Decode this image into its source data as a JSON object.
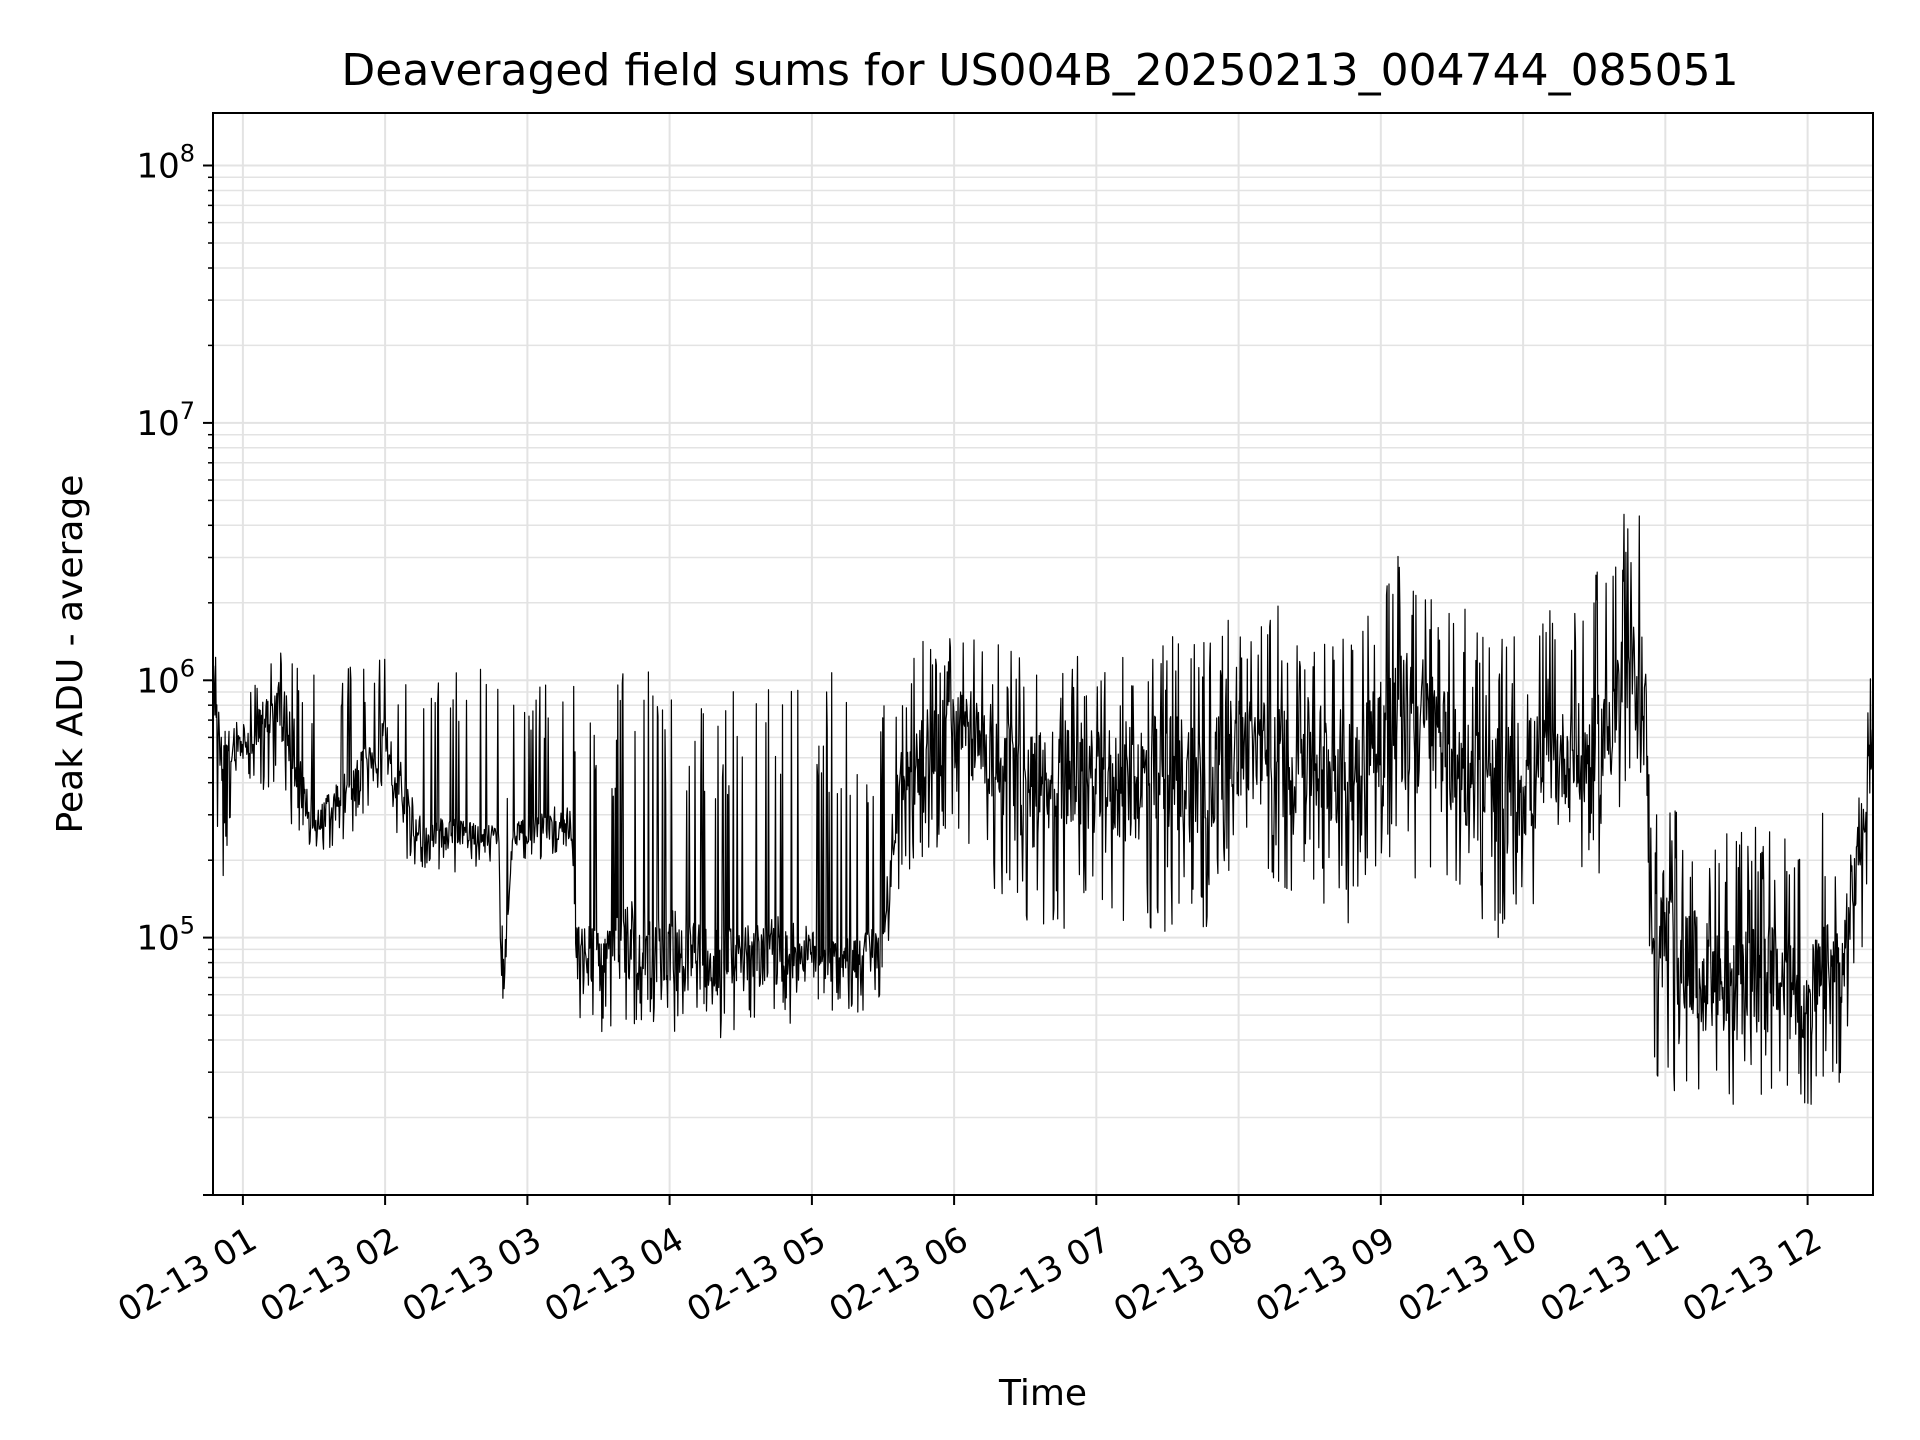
{
  "chart_data": {
    "type": "line",
    "title": "Deaveraged field sums for US004B_20250213_004744_085051",
    "xlabel": "Time",
    "ylabel": "Peak ADU - average",
    "yscale": "log",
    "ylim": [
      10000,
      160000000
    ],
    "xlim_hours": [
      0.79,
      12.46
    ],
    "grid": true,
    "line_color": "#000000",
    "x_ticks": [
      {
        "hour": 1,
        "label": "02-13 01"
      },
      {
        "hour": 2,
        "label": "02-13 02"
      },
      {
        "hour": 3,
        "label": "02-13 03"
      },
      {
        "hour": 4,
        "label": "02-13 04"
      },
      {
        "hour": 5,
        "label": "02-13 05"
      },
      {
        "hour": 6,
        "label": "02-13 06"
      },
      {
        "hour": 7,
        "label": "02-13 07"
      },
      {
        "hour": 8,
        "label": "02-13 08"
      },
      {
        "hour": 9,
        "label": "02-13 09"
      },
      {
        "hour": 10,
        "label": "02-13 10"
      },
      {
        "hour": 11,
        "label": "02-13 11"
      },
      {
        "hour": 12,
        "label": "02-13 12"
      }
    ],
    "y_ticks": [
      {
        "value": 100000,
        "base": "10",
        "exp": "5"
      },
      {
        "value": 1000000,
        "base": "10",
        "exp": "6"
      },
      {
        "value": 10000000,
        "base": "10",
        "exp": "7"
      },
      {
        "value": 100000000,
        "base": "10",
        "exp": "8"
      }
    ],
    "series": [
      {
        "x_hours": [
          0.79,
          0.85,
          0.95,
          1.1,
          1.25,
          1.4,
          1.5,
          1.75,
          2.0,
          2.1,
          2.25,
          2.5,
          2.8,
          2.82,
          2.9,
          3.2,
          3.3,
          3.35,
          3.5,
          3.75,
          4.0,
          4.25,
          4.5,
          4.8,
          5.0,
          5.25,
          5.5,
          5.6,
          5.75,
          6.0,
          6.25,
          6.5,
          6.75,
          7.0,
          7.25,
          7.5,
          7.75,
          8.0,
          8.25,
          8.5,
          8.75,
          9.0,
          9.25,
          9.5,
          9.75,
          10.0,
          10.25,
          10.5,
          10.7,
          10.85,
          10.9,
          11.0,
          11.25,
          11.5,
          11.75,
          12.0,
          12.25,
          12.4,
          12.46
        ],
        "y_center": [
          1000000,
          500000,
          550000,
          650000,
          800000,
          450000,
          280000,
          380000,
          580000,
          400000,
          250000,
          250000,
          250000,
          60000,
          250000,
          280000,
          280000,
          90000,
          80000,
          100000,
          90000,
          85000,
          80000,
          90000,
          85000,
          80000,
          90000,
          350000,
          550000,
          650000,
          550000,
          350000,
          450000,
          400000,
          400000,
          450000,
          400000,
          550000,
          500000,
          500000,
          450000,
          650000,
          700000,
          500000,
          350000,
          400000,
          500000,
          500000,
          900000,
          1100000,
          150000,
          100000,
          70000,
          65000,
          70000,
          60000,
          80000,
          300000,
          650000
        ],
        "y_low": [
          300000,
          150000,
          300000,
          400000,
          300000,
          230000,
          200000,
          250000,
          350000,
          200000,
          180000,
          180000,
          200000,
          45000,
          200000,
          200000,
          200000,
          50000,
          40000,
          45000,
          40000,
          40000,
          40000,
          45000,
          50000,
          50000,
          55000,
          150000,
          200000,
          250000,
          150000,
          100000,
          100000,
          150000,
          100000,
          100000,
          100000,
          200000,
          150000,
          150000,
          100000,
          200000,
          150000,
          150000,
          100000,
          100000,
          200000,
          150000,
          250000,
          400000,
          30000,
          25000,
          22000,
          22000,
          22000,
          22000,
          25000,
          100000,
          400000
        ],
        "y_high": [
          1500000,
          800000,
          900000,
          1000000,
          1300000,
          1200000,
          1300000,
          1200000,
          1300000,
          1200000,
          1200000,
          1200000,
          1200000,
          140000,
          1200000,
          1100000,
          1100000,
          1100000,
          1100000,
          1100000,
          1100000,
          1100000,
          1100000,
          1000000,
          1200000,
          1000000,
          1000000,
          800000,
          1500000,
          1500000,
          1500000,
          1200000,
          1300000,
          1200000,
          1400000,
          1500000,
          1500000,
          2000000,
          2000000,
          1800000,
          1500000,
          3000000,
          3500000,
          2500000,
          1500000,
          1500000,
          2000000,
          2500000,
          4500000,
          4500000,
          600000,
          400000,
          300000,
          250000,
          300000,
          300000,
          350000,
          500000,
          1800000
        ]
      }
    ]
  }
}
